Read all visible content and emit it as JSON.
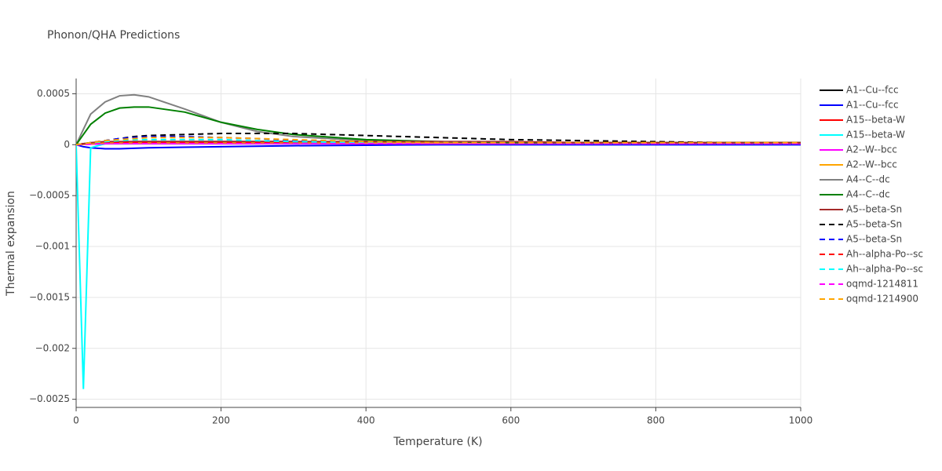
{
  "chart_data": {
    "type": "line",
    "title": "Phonon/QHA Predictions",
    "x_label": "Temperature (K)",
    "y_label": "Thermal expansion",
    "x": [
      0,
      10,
      20,
      40,
      60,
      80,
      100,
      150,
      200,
      250,
      300,
      400,
      500,
      600,
      700,
      800,
      900,
      1000
    ],
    "xlim": [
      0,
      1000
    ],
    "xticks": [
      0,
      200,
      400,
      600,
      800,
      1000
    ],
    "ylim": [
      -0.00258,
      0.00065
    ],
    "yticks": [
      {
        "value": -0.0025,
        "label": "−0.0025"
      },
      {
        "value": -0.002,
        "label": "−0.002"
      },
      {
        "value": -0.0015,
        "label": "−0.0015"
      },
      {
        "value": -0.001,
        "label": "−0.001"
      },
      {
        "value": -0.0005,
        "label": "−0.0005"
      },
      0,
      0.0005
    ],
    "grid": true,
    "legend": "right",
    "series": [
      {
        "name": "A1--Cu--fcc",
        "color": "#000000",
        "dash": false,
        "values": [
          0,
          5e-06,
          1e-05,
          2e-05,
          2.5e-05,
          3e-05,
          3e-05,
          3e-05,
          3e-05,
          3e-05,
          3e-05,
          2e-05,
          2e-05,
          2e-05,
          1e-05,
          1e-05,
          1e-05,
          1e-05
        ]
      },
      {
        "name": "A1--Cu--fcc",
        "color": "#0000ff",
        "dash": false,
        "values": [
          0,
          -2e-05,
          -3e-05,
          -4e-05,
          -4e-05,
          -3.5e-05,
          -3e-05,
          -2.5e-05,
          -2e-05,
          -1.5e-05,
          -1e-05,
          -5e-06,
          0,
          0,
          0,
          0,
          0,
          0
        ]
      },
      {
        "name": "A15--beta-W",
        "color": "#ff0000",
        "dash": false,
        "values": [
          0,
          1e-05,
          1.5e-05,
          2e-05,
          2e-05,
          2e-05,
          2e-05,
          2e-05,
          2e-05,
          2e-05,
          2e-05,
          2e-05,
          2e-05,
          2e-05,
          2e-05,
          2e-05,
          2e-05,
          2e-05
        ]
      },
      {
        "name": "A15--beta-W",
        "color": "#00ffff",
        "dash": false,
        "values": [
          0,
          -0.0024,
          -3e-05,
          1e-05,
          2e-05,
          2e-05,
          2e-05,
          2e-05,
          2e-05,
          2e-05,
          2e-05,
          1e-05,
          1e-05,
          1e-05,
          1e-05,
          1e-05,
          1e-05,
          1e-05
        ]
      },
      {
        "name": "A2--W--bcc",
        "color": "#ff00ff",
        "dash": false,
        "values": [
          0,
          3e-06,
          5e-06,
          1e-05,
          1e-05,
          1e-05,
          1e-05,
          1e-05,
          1e-05,
          1e-05,
          1e-05,
          1e-05,
          1e-05,
          1e-05,
          1e-05,
          1e-05,
          1e-05,
          1e-05
        ]
      },
      {
        "name": "A2--W--bcc",
        "color": "#ffa500",
        "dash": false,
        "values": [
          0,
          5e-06,
          1e-05,
          2e-05,
          2e-05,
          2e-05,
          2e-05,
          2e-05,
          2e-05,
          2e-05,
          2e-05,
          2e-05,
          2e-05,
          2e-05,
          2e-05,
          2e-05,
          2e-05,
          2e-05
        ]
      },
      {
        "name": "A4--C--dc",
        "color": "#808080",
        "dash": false,
        "values": [
          0,
          0.00015,
          0.0003,
          0.00042,
          0.00048,
          0.00049,
          0.00047,
          0.00035,
          0.00022,
          0.00013,
          8e-05,
          4e-05,
          3e-05,
          2e-05,
          2e-05,
          2e-05,
          2e-05,
          2e-05
        ]
      },
      {
        "name": "A4--C--dc",
        "color": "#008000",
        "dash": false,
        "values": [
          0,
          0.0001,
          0.0002,
          0.00031,
          0.00036,
          0.00037,
          0.00037,
          0.00032,
          0.00022,
          0.00015,
          0.0001,
          5e-05,
          3e-05,
          2e-05,
          2e-05,
          2e-05,
          2e-05,
          2e-05
        ]
      },
      {
        "name": "A5--beta-Sn",
        "color": "#a52a2a",
        "dash": false,
        "values": [
          0,
          1e-05,
          2e-05,
          3e-05,
          3e-05,
          3e-05,
          3e-05,
          3e-05,
          3e-05,
          3e-05,
          3e-05,
          3e-05,
          3e-05,
          3e-05,
          2e-05,
          2e-05,
          2e-05,
          2e-05
        ]
      },
      {
        "name": "A5--beta-Sn",
        "color": "#000000",
        "dash": true,
        "values": [
          0,
          1e-05,
          2e-05,
          4e-05,
          6e-05,
          8e-05,
          9e-05,
          0.0001,
          0.00011,
          0.00011,
          0.00011,
          9e-05,
          7e-05,
          5e-05,
          4e-05,
          3e-05,
          2e-05,
          2e-05
        ]
      },
      {
        "name": "A5--beta-Sn",
        "color": "#0000ff",
        "dash": true,
        "values": [
          0,
          1e-05,
          2e-05,
          4e-05,
          6e-05,
          7e-05,
          8e-05,
          8e-05,
          7e-05,
          6e-05,
          4e-05,
          3e-05,
          2e-05,
          2e-05,
          1e-05,
          1e-05,
          1e-05,
          1e-05
        ]
      },
      {
        "name": "Ah--alpha-Po--sc",
        "color": "#ff0000",
        "dash": true,
        "values": [
          0,
          1e-05,
          2e-05,
          2e-05,
          2e-05,
          2e-05,
          2e-05,
          2e-05,
          2e-05,
          2e-05,
          2e-05,
          2e-05,
          2e-05,
          2e-05,
          2e-05,
          2e-05,
          2e-05,
          2e-05
        ]
      },
      {
        "name": "Ah--alpha-Po--sc",
        "color": "#00ffff",
        "dash": true,
        "values": [
          0,
          1e-05,
          2e-05,
          3e-05,
          4e-05,
          5e-05,
          5e-05,
          5e-05,
          5e-05,
          4e-05,
          3e-05,
          2e-05,
          2e-05,
          2e-05,
          1e-05,
          1e-05,
          1e-05,
          1e-05
        ]
      },
      {
        "name": "oqmd-1214811",
        "color": "#ff00ff",
        "dash": true,
        "values": [
          0,
          3e-06,
          5e-06,
          1e-05,
          1e-05,
          1e-05,
          1e-05,
          1e-05,
          1e-05,
          1e-05,
          1e-05,
          1e-05,
          1e-05,
          1e-05,
          1e-05,
          1e-05,
          1e-05,
          1e-05
        ]
      },
      {
        "name": "oqmd-1214900",
        "color": "#ffa500",
        "dash": true,
        "values": [
          0,
          1e-05,
          2e-05,
          4e-05,
          5e-05,
          6e-05,
          7e-05,
          7e-05,
          7e-05,
          6e-05,
          5e-05,
          3e-05,
          2e-05,
          2e-05,
          2e-05,
          2e-05,
          2e-05,
          2e-05
        ]
      }
    ]
  }
}
